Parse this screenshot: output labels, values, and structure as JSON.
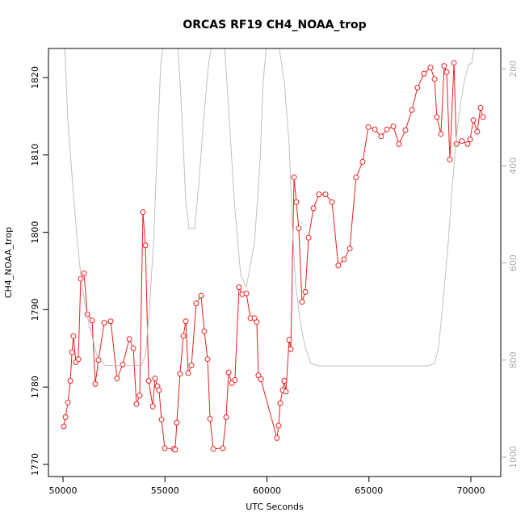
{
  "chart_data": {
    "type": "line",
    "title": "ORCAS RF19 CH4_NOAA_trop",
    "xlabel": "UTC Seconds",
    "ylabel": "CH4_NOAA_trop",
    "xlim": [
      49287,
      71465
    ],
    "ylim": [
      1768.43,
      1823.76
    ],
    "y2lim": [
      1040,
      158
    ],
    "xticks": [
      50000,
      55000,
      60000,
      65000,
      70000
    ],
    "yticks": [
      1770,
      1780,
      1790,
      1800,
      1810,
      1820
    ],
    "y2ticks": [
      200,
      400,
      600,
      800,
      1000
    ],
    "series": [
      {
        "color": "#e8201f",
        "markers": true,
        "x": [
          50040,
          50120,
          50240,
          50360,
          50440,
          50510,
          50630,
          50750,
          50870,
          51030,
          51190,
          51430,
          51580,
          51740,
          52020,
          52340,
          52650,
          52930,
          53250,
          53450,
          53600,
          53760,
          53920,
          54040,
          54200,
          54400,
          54510,
          54630,
          54710,
          54830,
          54990,
          55430,
          55500,
          55580,
          55740,
          55900,
          56020,
          56140,
          56300,
          56530,
          56770,
          56930,
          57090,
          57210,
          57370,
          57840,
          58000,
          58120,
          58280,
          58430,
          58630,
          58790,
          58990,
          59190,
          59390,
          59500,
          59580,
          59700,
          60490,
          60570,
          60650,
          60770,
          60850,
          60930,
          61090,
          61170,
          61330,
          61440,
          61560,
          61720,
          61880,
          62040,
          62280,
          62550,
          62870,
          63190,
          63500,
          63780,
          64060,
          64370,
          64690,
          64970,
          65290,
          65600,
          65880,
          66200,
          66470,
          66790,
          67110,
          67380,
          67700,
          68020,
          68220,
          68330,
          68530,
          68690,
          68810,
          68970,
          69170,
          69290,
          69560,
          69840,
          69960,
          70120,
          70310,
          70470,
          70590
        ],
        "values": [
          1774.9,
          1776.1,
          1778.0,
          1780.8,
          1784.5,
          1786.6,
          1783.2,
          1783.6,
          1794.0,
          1794.7,
          1789.4,
          1788.6,
          1780.4,
          1783.5,
          1788.3,
          1788.5,
          1781.1,
          1782.9,
          1786.2,
          1785.0,
          1777.8,
          1778.9,
          1802.6,
          1798.3,
          1780.8,
          1777.5,
          1781.1,
          1780.1,
          1779.6,
          1775.8,
          1772.1,
          1772.0,
          1771.9,
          1775.4,
          1781.7,
          1786.6,
          1788.5,
          1781.8,
          1782.8,
          1790.8,
          1791.8,
          1787.2,
          1783.6,
          1775.9,
          1772.0,
          1772.1,
          1776.1,
          1781.9,
          1780.5,
          1780.9,
          1792.9,
          1792.0,
          1792.1,
          1788.9,
          1788.9,
          1788.4,
          1781.5,
          1781.0,
          1773.4,
          1775.0,
          1777.9,
          1779.6,
          1780.8,
          1779.4,
          1786.1,
          1784.9,
          1807.1,
          1803.9,
          1800.5,
          1791.0,
          1792.3,
          1799.3,
          1803.1,
          1804.9,
          1804.9,
          1803.9,
          1795.7,
          1796.5,
          1797.9,
          1807.1,
          1809.1,
          1813.6,
          1813.3,
          1812.4,
          1813.3,
          1813.7,
          1811.4,
          1813.2,
          1815.8,
          1818.7,
          1820.5,
          1821.3,
          1819.8,
          1814.9,
          1812.7,
          1821.5,
          1820.7,
          1809.4,
          1821.9,
          1811.4,
          1811.8,
          1811.4,
          1812.0,
          1814.5,
          1813.0,
          1816.1,
          1814.9
        ]
      },
      {
        "color": "#c0c0c0",
        "axis": "y2",
        "markers": false,
        "x": [
          50080,
          50240,
          50480,
          50670,
          50870,
          51070,
          51270,
          51660,
          52060,
          52850,
          53840,
          54040,
          54240,
          54440,
          54630,
          54790,
          54910,
          55620,
          55740,
          55900,
          56020,
          56180,
          56460,
          56650,
          56890,
          57130,
          57290,
          57920,
          58160,
          58400,
          58710,
          58990,
          59390,
          59660,
          59820,
          59980,
          60570,
          60850,
          61090,
          61250,
          61400,
          61640,
          61880,
          62160,
          62550,
          64730,
          67900,
          68220,
          68410,
          68610,
          68890,
          69090,
          69290,
          69480,
          69680,
          69880,
          70040,
          70160,
          70280
        ],
        "values": [
          150,
          308,
          441,
          541,
          624,
          683,
          724,
          791,
          811,
          812,
          811,
          791,
          691,
          558,
          358,
          192,
          150,
          150,
          225,
          358,
          475,
          529,
          529,
          441,
          308,
          192,
          150,
          150,
          308,
          475,
          624,
          649,
          558,
          391,
          225,
          150,
          150,
          225,
          358,
          524,
          641,
          724,
          774,
          807,
          812,
          812,
          812,
          807,
          774,
          691,
          558,
          441,
          341,
          275,
          225,
          192,
          188,
          158,
          142
        ]
      }
    ]
  }
}
